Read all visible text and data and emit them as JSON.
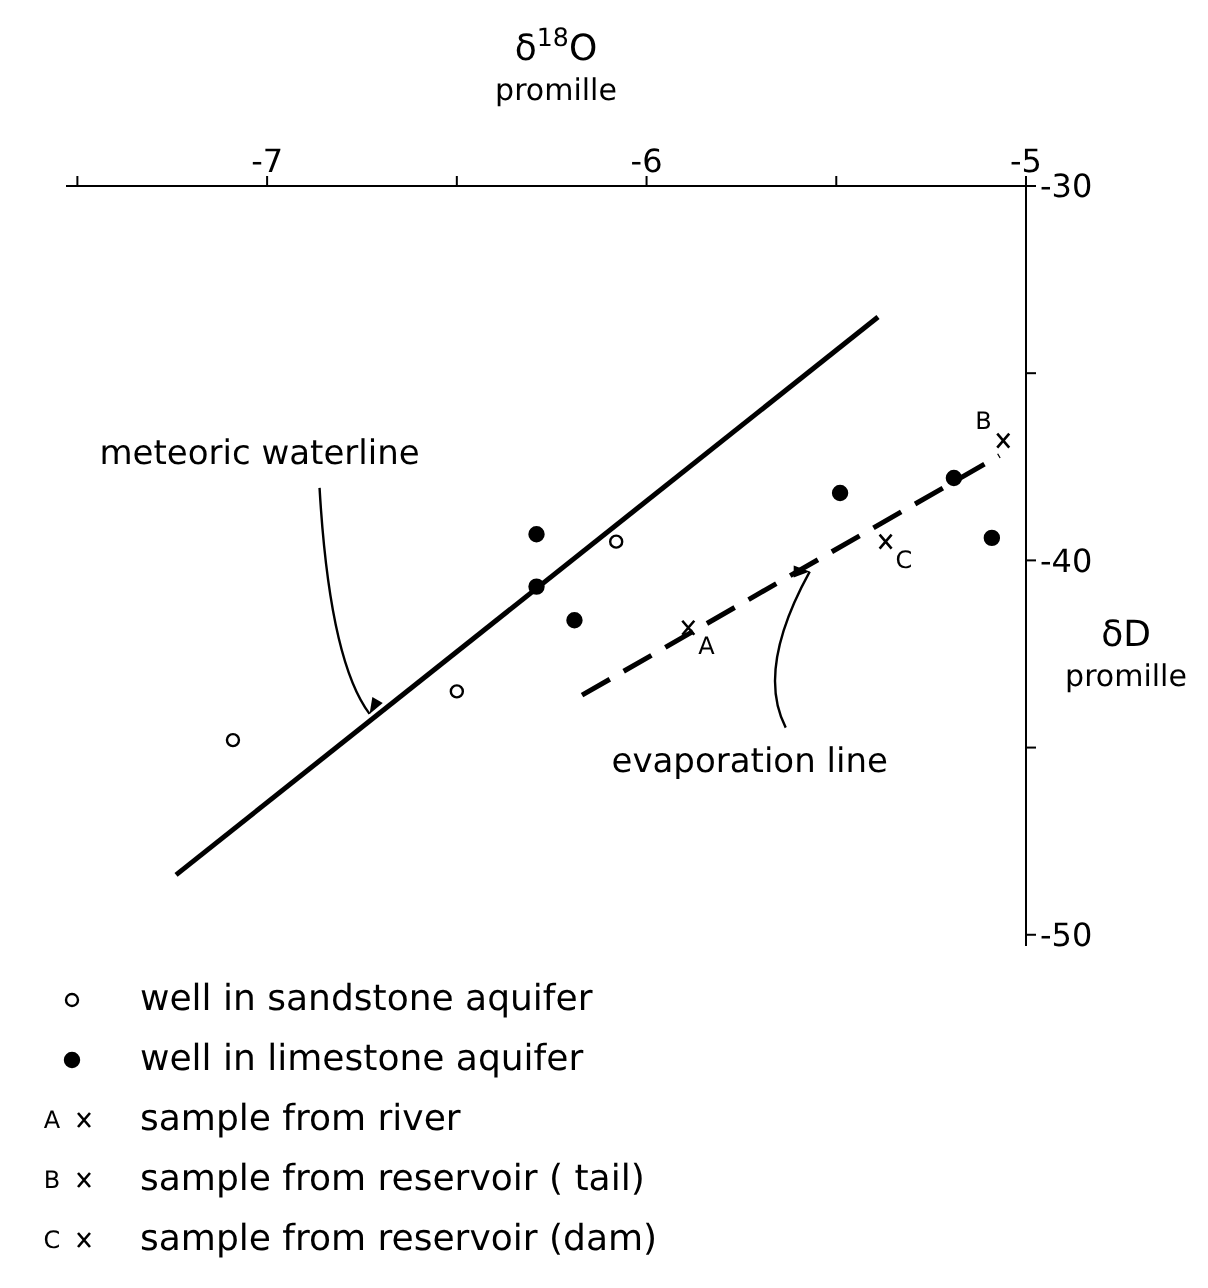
{
  "chart_data": {
    "type": "scatter",
    "xlabel": "δ$^{18}$O promille",
    "ylabel": "δD promille",
    "xlim": [
      -7.53,
      -5
    ],
    "ylim": [
      -50.3,
      -30
    ],
    "xticks": [
      {
        "value": -7.5,
        "label": null
      },
      -7,
      {
        "value": -6.5,
        "label": null
      },
      -6,
      {
        "value": -5.5,
        "label": null
      },
      -5
    ],
    "yticks": [
      -30,
      {
        "value": -35,
        "label": null
      },
      -40,
      {
        "value": -45,
        "label": null
      },
      -50
    ],
    "grid": false,
    "legend": "bottom",
    "series": [
      {
        "name": "well in sandstone aquifer",
        "marker": "circle",
        "color": "#ffffff",
        "x": [
          -7.09,
          -6.5,
          -6.08
        ],
        "values": [
          -44.8,
          -43.5,
          -39.5
        ]
      },
      {
        "name": "well in limestone aquifer",
        "marker": "circle",
        "color": "#000000",
        "x": [
          -6.29,
          -6.29,
          -6.19,
          -5.49,
          -5.19,
          -5.09
        ],
        "values": [
          -39.3,
          -40.7,
          -41.6,
          -38.2,
          -37.8,
          -39.4
        ]
      },
      {
        "name": "sample from river",
        "marker": "cross",
        "color": "#000000",
        "x": [
          -5.89
        ],
        "values": [
          -41.8
        ]
      },
      {
        "name": "sample from reservoir ( tail)",
        "marker": "cross",
        "color": "#000000",
        "x": [
          -5.06
        ],
        "values": [
          -36.8
        ]
      },
      {
        "name": "sample from reservoir (dam)",
        "marker": "cross",
        "color": "#000000",
        "x": [
          -5.37
        ],
        "values": [
          -39.5
        ]
      },
      {
        "type": "line",
        "marker": "none",
        "line_style": "solid",
        "color": "#000000",
        "x": [
          -7.24,
          -5.39
        ],
        "values": [
          -48.4,
          -33.5
        ]
      },
      {
        "type": "line",
        "marker": "none",
        "line_style": "dashed",
        "color": "#000000",
        "x": [
          -6.17,
          -5.07
        ],
        "values": [
          -43.6,
          -37.2
        ]
      }
    ],
    "annotations": [
      {
        "text": "A",
        "x": -5.89,
        "y": -41.8
      },
      {
        "text": "B",
        "x": -5.06,
        "y": -36.8
      },
      {
        "text": "C",
        "x": -5.37,
        "y": -39.5
      },
      {
        "text": "meteoric waterline",
        "x": -6.73,
        "y": -44.1
      },
      {
        "text": "evaporation line",
        "x": -5.57,
        "y": -40.3
      }
    ]
  }
}
